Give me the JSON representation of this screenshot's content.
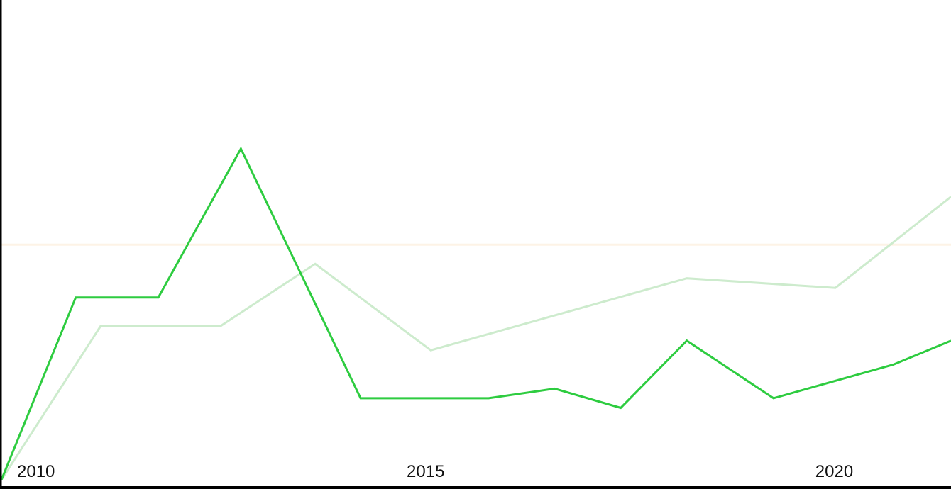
{
  "chart_data": {
    "type": "line",
    "x_ticks": [
      2010,
      2015,
      2020
    ],
    "xlim": [
      2010,
      2021.5
    ],
    "ylim": [
      0,
      100
    ],
    "reference_line": {
      "y": 49,
      "color": "#fdf3e6"
    },
    "series": [
      {
        "color": "#2ecc40",
        "x": [
          2010,
          2010.9,
          2011.9,
          2012.9,
          2014.35,
          2015.9,
          2016.7,
          2017.5,
          2018.3,
          2019.35,
          2020.8,
          2021.5
        ],
        "y": [
          0,
          38,
          38,
          69,
          17,
          17,
          19,
          15,
          29,
          17,
          24,
          29
        ]
      },
      {
        "color": "#cdebcd",
        "x": [
          2010,
          2011.2,
          2012.65,
          2013.8,
          2015.2,
          2018.3,
          2020.1,
          2021.5
        ],
        "y": [
          0,
          32,
          32,
          45,
          27,
          42,
          40,
          59
        ]
      }
    ],
    "grid": false,
    "legend": "none"
  }
}
